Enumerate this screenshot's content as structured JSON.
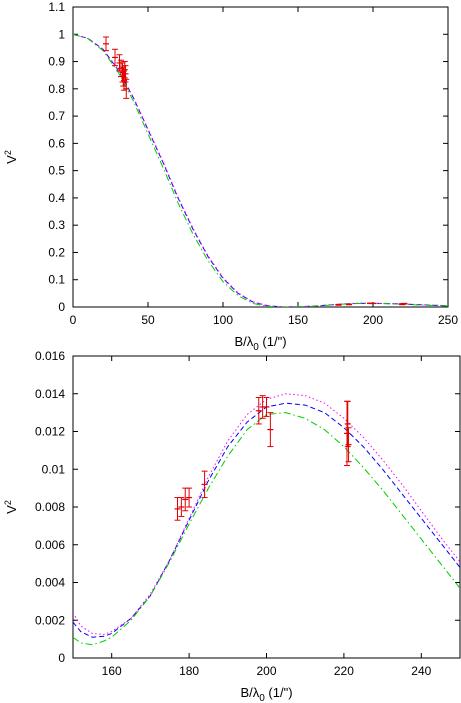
{
  "chart_data": [
    {
      "type": "line",
      "xlabel": "B/λ",
      "xlabel_sub": "0",
      "xlabel_unit": " (1/\")",
      "ylabel": "V",
      "ylabel_sup": "2",
      "xlim": [
        0,
        250
      ],
      "ylim": [
        0,
        1.1
      ],
      "x_ticks": [
        0,
        50,
        100,
        150,
        200,
        250
      ],
      "x_tick_labels": [
        "0",
        "50",
        "100",
        "150",
        "200",
        "250"
      ],
      "y_ticks": [
        0,
        0.1,
        0.2,
        0.3,
        0.4,
        0.5,
        0.6,
        0.7,
        0.8,
        0.9,
        1,
        1.1
      ],
      "y_tick_labels": [
        "0",
        "0.1",
        "0.2",
        "0.3",
        "0.4",
        "0.5",
        "0.6",
        "0.7",
        "0.8",
        "0.9",
        "1",
        "1.1"
      ],
      "grid": false,
      "series": [
        {
          "style": "dashed",
          "color": "#0000ff",
          "x": [
            0,
            10,
            20,
            30,
            40,
            50,
            60,
            70,
            80,
            90,
            100,
            110,
            120,
            130,
            140,
            150,
            160,
            170,
            180,
            190,
            200,
            210,
            220,
            230,
            240,
            250
          ],
          "values": [
            1.0,
            0.985,
            0.945,
            0.87,
            0.77,
            0.65,
            0.53,
            0.4,
            0.285,
            0.185,
            0.105,
            0.05,
            0.018,
            0.004,
            0.0005,
            0.001,
            0.003,
            0.007,
            0.011,
            0.0135,
            0.0135,
            0.0125,
            0.011,
            0.0085,
            0.0065,
            0.0045
          ]
        },
        {
          "style": "dotted",
          "color": "#ff00ff",
          "x": [
            0,
            10,
            20,
            30,
            40,
            50,
            60,
            70,
            80,
            90,
            100,
            110,
            120,
            130,
            140,
            150,
            160,
            170,
            180,
            190,
            200,
            210,
            220,
            230,
            240,
            250
          ],
          "values": [
            1.0,
            0.985,
            0.946,
            0.872,
            0.772,
            0.653,
            0.534,
            0.404,
            0.289,
            0.188,
            0.108,
            0.052,
            0.019,
            0.005,
            0.0006,
            0.001,
            0.003,
            0.0075,
            0.0115,
            0.014,
            0.014,
            0.013,
            0.0115,
            0.009,
            0.007,
            0.005
          ]
        },
        {
          "style": "dash-dot",
          "color": "#00cc00",
          "x": [
            0,
            10,
            20,
            30,
            40,
            50,
            60,
            70,
            80,
            90,
            100,
            110,
            120,
            130,
            140,
            150,
            160,
            170,
            180,
            190,
            200,
            210,
            220,
            230,
            240,
            250
          ],
          "values": [
            1.0,
            0.984,
            0.94,
            0.862,
            0.758,
            0.635,
            0.512,
            0.382,
            0.267,
            0.17,
            0.093,
            0.042,
            0.013,
            0.002,
            0.0002,
            0.0008,
            0.0025,
            0.0065,
            0.0105,
            0.0128,
            0.013,
            0.0118,
            0.0098,
            0.0075,
            0.0055,
            0.0038
          ]
        }
      ],
      "points": [
        {
          "x": 22,
          "y": 0.965,
          "err": 0.025
        },
        {
          "x": 28,
          "y": 0.915,
          "err": 0.03
        },
        {
          "x": 31,
          "y": 0.895,
          "err": 0.03
        },
        {
          "x": 32,
          "y": 0.875,
          "err": 0.03
        },
        {
          "x": 33,
          "y": 0.86,
          "err": 0.035
        },
        {
          "x": 33.5,
          "y": 0.845,
          "err": 0.035
        },
        {
          "x": 34,
          "y": 0.83,
          "err": 0.035
        },
        {
          "x": 34.5,
          "y": 0.87,
          "err": 0.03
        },
        {
          "x": 35,
          "y": 0.855,
          "err": 0.03
        },
        {
          "x": 35.5,
          "y": 0.8,
          "err": 0.035
        },
        {
          "x": 177,
          "y": 0.008,
          "err": 0.0015
        },
        {
          "x": 184,
          "y": 0.0092,
          "err": 0.0007
        },
        {
          "x": 198,
          "y": 0.0132,
          "err": 0.0006
        },
        {
          "x": 200,
          "y": 0.0131,
          "err": 0.0006
        },
        {
          "x": 219.5,
          "y": 0.0105,
          "err": 0.002
        },
        {
          "x": 221,
          "y": 0.0122,
          "err": 0.0012
        }
      ]
    },
    {
      "type": "line",
      "xlabel": "B/λ",
      "xlabel_sub": "0",
      "xlabel_unit": " (1/\")",
      "ylabel": "V",
      "ylabel_sup": "2",
      "xlim": [
        150,
        250
      ],
      "ylim": [
        0,
        0.016
      ],
      "x_ticks": [
        160,
        180,
        200,
        220,
        240
      ],
      "x_tick_labels": [
        "160",
        "180",
        "200",
        "220",
        "240"
      ],
      "y_ticks": [
        0,
        0.002,
        0.004,
        0.006,
        0.008,
        0.01,
        0.012,
        0.014,
        0.016
      ],
      "y_tick_labels": [
        "0",
        "0.002",
        "0.004",
        "0.006",
        "0.008",
        "0.01",
        "0.012",
        "0.014",
        "0.016"
      ],
      "grid": false,
      "series": [
        {
          "style": "dashed",
          "color": "#0000ff",
          "x": [
            150,
            152,
            155,
            158,
            160,
            165,
            170,
            175,
            180,
            185,
            190,
            195,
            200,
            205,
            210,
            215,
            220,
            225,
            230,
            235,
            240,
            245,
            250
          ],
          "values": [
            0.0019,
            0.0014,
            0.0011,
            0.00115,
            0.0013,
            0.0021,
            0.0033,
            0.0052,
            0.0073,
            0.0094,
            0.0112,
            0.0125,
            0.0133,
            0.0135,
            0.0134,
            0.013,
            0.0122,
            0.0112,
            0.01,
            0.0087,
            0.0074,
            0.0061,
            0.0048
          ]
        },
        {
          "style": "dotted",
          "color": "#ff00ff",
          "x": [
            150,
            152,
            155,
            158,
            160,
            165,
            170,
            175,
            180,
            185,
            190,
            195,
            200,
            205,
            210,
            215,
            220,
            225,
            230,
            235,
            240,
            245,
            250
          ],
          "values": [
            0.0024,
            0.0017,
            0.0013,
            0.00125,
            0.0014,
            0.0021,
            0.0034,
            0.0052,
            0.0074,
            0.0096,
            0.0115,
            0.0129,
            0.0137,
            0.014,
            0.0139,
            0.0135,
            0.0127,
            0.0117,
            0.0105,
            0.0092,
            0.0078,
            0.0064,
            0.0051
          ]
        },
        {
          "style": "dash-dot",
          "color": "#00cc00",
          "x": [
            150,
            152,
            155,
            158,
            160,
            165,
            170,
            175,
            180,
            185,
            190,
            195,
            200,
            205,
            210,
            215,
            220,
            225,
            230,
            235,
            240,
            245,
            250
          ],
          "values": [
            0.0011,
            0.0008,
            0.0007,
            0.0009,
            0.0011,
            0.002,
            0.0033,
            0.0051,
            0.0071,
            0.009,
            0.0107,
            0.0121,
            0.0129,
            0.013,
            0.0127,
            0.0121,
            0.0112,
            0.0101,
            0.0089,
            0.0076,
            0.0063,
            0.005,
            0.0037
          ]
        }
      ],
      "points": [
        {
          "x": 177,
          "y": 0.0079,
          "err": 0.0006
        },
        {
          "x": 178,
          "y": 0.008,
          "err": 0.0005
        },
        {
          "x": 179,
          "y": 0.0084,
          "err": 0.0006
        },
        {
          "x": 180,
          "y": 0.0085,
          "err": 0.0005
        },
        {
          "x": 184,
          "y": 0.0092,
          "err": 0.0007
        },
        {
          "x": 198,
          "y": 0.0131,
          "err": 0.0007
        },
        {
          "x": 199,
          "y": 0.0133,
          "err": 0.0006
        },
        {
          "x": 200,
          "y": 0.0133,
          "err": 0.0005
        },
        {
          "x": 201,
          "y": 0.0121,
          "err": 0.0009
        },
        {
          "x": 220.8,
          "y": 0.0119,
          "err": 0.0017
        },
        {
          "x": 221,
          "y": 0.0124,
          "err": 0.0012
        },
        {
          "x": 221.2,
          "y": 0.0113,
          "err": 0.0009
        }
      ]
    }
  ]
}
